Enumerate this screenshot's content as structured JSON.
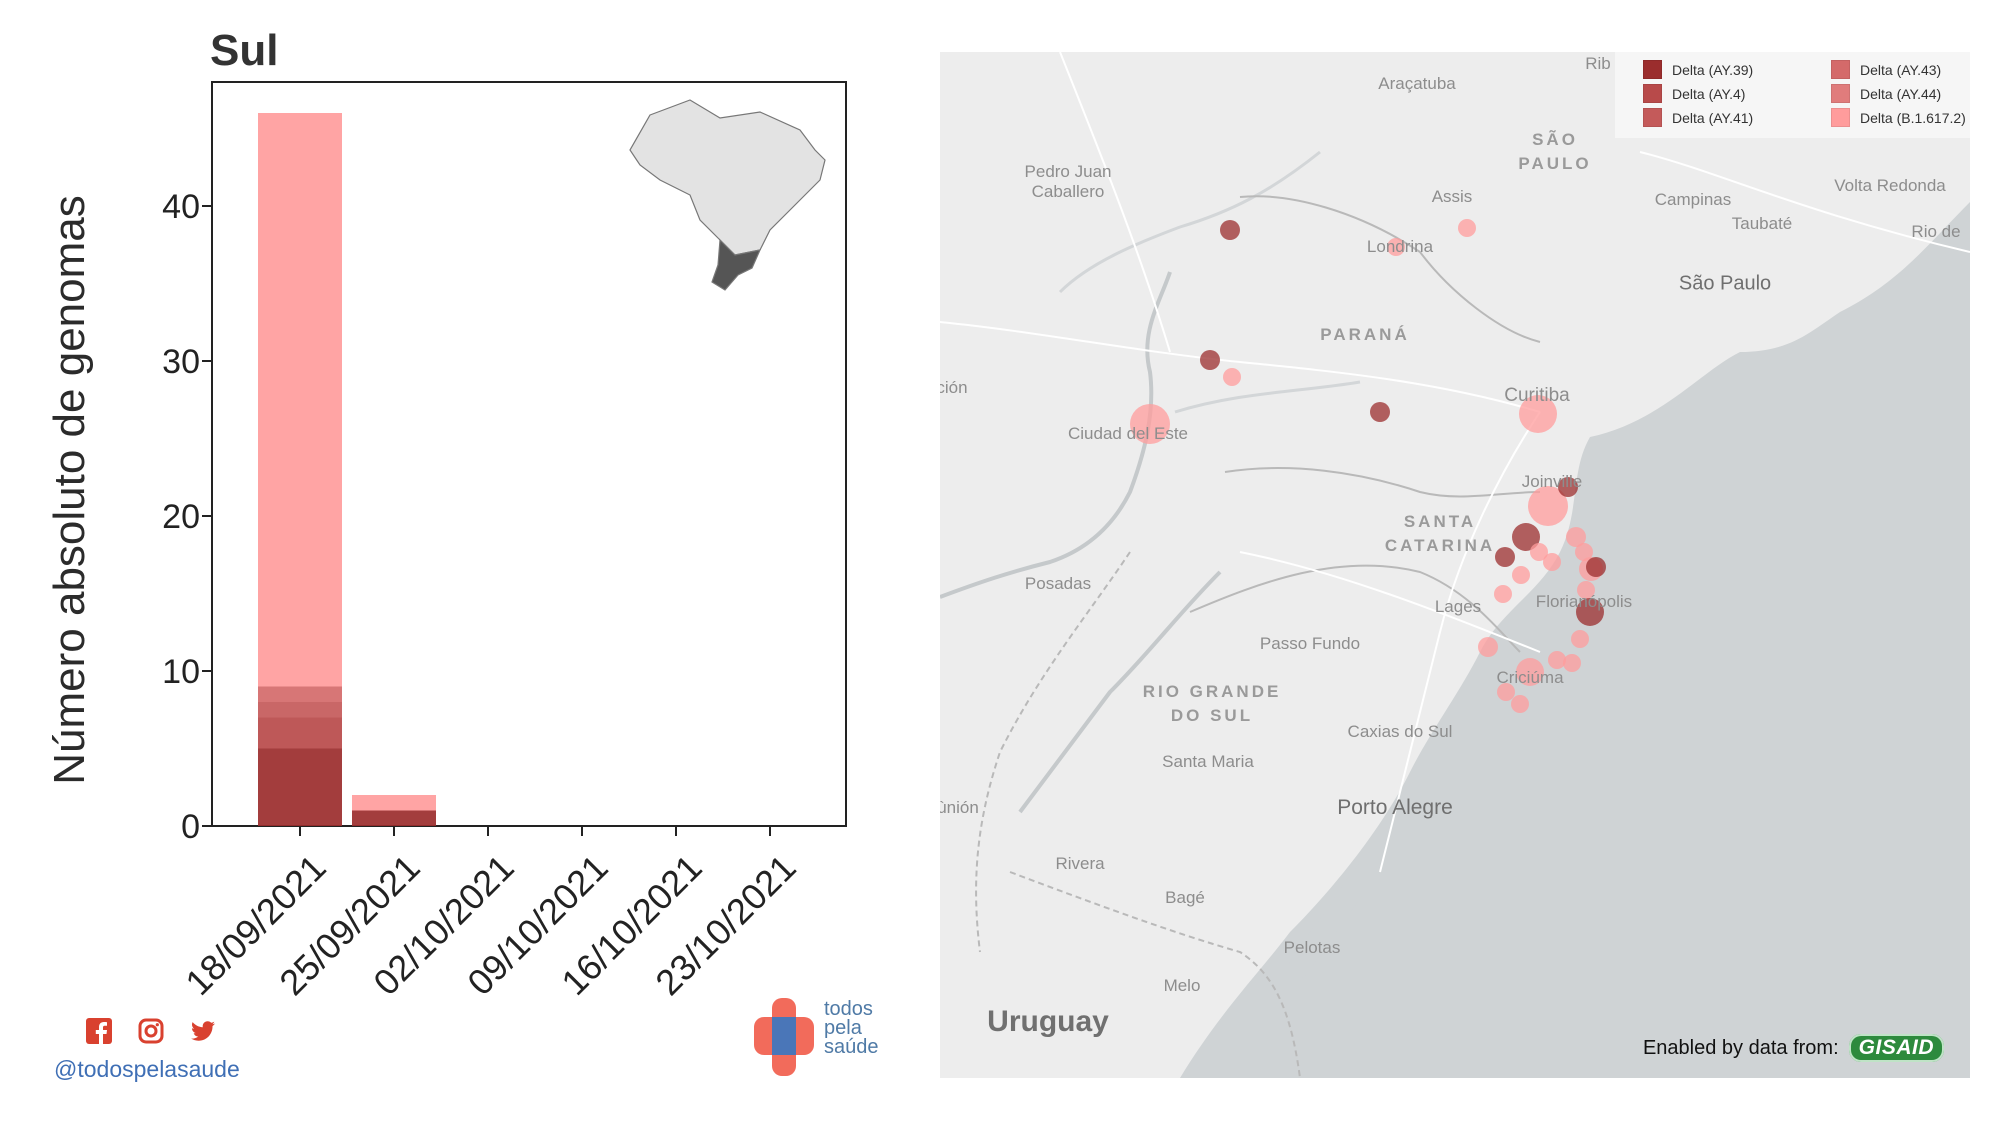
{
  "chart": {
    "title": "Sul",
    "ylabel": "Número absoluto de genomas"
  },
  "chart_data": {
    "type": "bar",
    "title": "Sul",
    "xlabel": "",
    "ylabel": "Número absoluto de genomas",
    "categories": [
      "18/09/2021",
      "25/09/2021",
      "02/10/2021",
      "09/10/2021",
      "16/10/2021",
      "23/10/2021"
    ],
    "stacked": true,
    "yticks": [
      0,
      10,
      20,
      30,
      40
    ],
    "ylim": [
      0,
      48
    ],
    "grid": false,
    "series": [
      {
        "name": "Delta (AY.39)",
        "color": "#9b2d2d",
        "values": [
          5,
          1,
          0,
          0,
          0,
          0
        ]
      },
      {
        "name": "Delta (AY.4)",
        "color": "#b84a4a",
        "values": [
          2,
          0,
          0,
          0,
          0,
          0
        ]
      },
      {
        "name": "Delta (AY.41)",
        "color": "#c45a5a",
        "values": [
          1,
          0,
          0,
          0,
          0,
          0
        ]
      },
      {
        "name": "Delta (AY.43)",
        "color": "#d46a6a",
        "values": [
          1,
          0,
          0,
          0,
          0,
          0
        ]
      },
      {
        "name": "Delta (AY.44)",
        "color": "#e07c7c",
        "values": [
          0,
          0,
          0,
          0,
          0,
          0
        ]
      },
      {
        "name": "Delta (B.1.617.2)",
        "color": "#ff9c9c",
        "values": [
          37,
          1,
          0,
          0,
          0,
          0
        ]
      }
    ]
  },
  "inset_map": {
    "highlight_region": "Sul",
    "base_color": "#e3e3e3",
    "highlight_color": "#555555"
  },
  "social": {
    "icons": [
      "facebook-icon",
      "instagram-icon",
      "twitter-icon"
    ],
    "handle": "@todospelasaude"
  },
  "logo": {
    "line1": "todos",
    "line2": "pela",
    "line3": "saúde",
    "colors": {
      "red": "#f26b5b",
      "blue": "#4a76b8"
    }
  },
  "map": {
    "legend": [
      {
        "label": "Delta (AY.39)",
        "color": "#9b2d2d"
      },
      {
        "label": "Delta (AY.43)",
        "color": "#d46a6a"
      },
      {
        "label": "Delta (AY.4)",
        "color": "#b84a4a"
      },
      {
        "label": "Delta (AY.44)",
        "color": "#e07c7c"
      },
      {
        "label": "Delta (AY.41)",
        "color": "#c45a5a"
      },
      {
        "label": "Delta (B.1.617.2)",
        "color": "#ff9c9c"
      }
    ],
    "labels": {
      "aracatuba": "Araçatuba",
      "ribeirao": "Rib",
      "sao_paulo_state": "SÃO\nPAULO",
      "pedro_juan": "Pedro Juan\nCaballero",
      "assis": "Assis",
      "campinas": "Campinas",
      "volta_redonda": "Volta Redonda",
      "taubate": "Taubaté",
      "rio": "Rio de",
      "londrina": "Londrina",
      "sao_paulo_city": "São Paulo",
      "parana": "PARANÁ",
      "cion": "ción",
      "curitiba": "Curitiba",
      "ciudad_del_este": "Ciudad del Este",
      "joinville": "Joinville",
      "santa_catarina": "SANTA\nCATARINA",
      "posadas": "Posadas",
      "lages": "Lages",
      "florianopolis": "Florianópolis",
      "passo_fundo": "Passo Fundo",
      "rio_grande_do_sul": "RIO GRANDE\nDO SUL",
      "caxias": "Caxias do Sul",
      "santa_maria": "Santa Maria",
      "criciuma": "Criciúma",
      "porto_alegre": "Porto Alegre",
      "union": "ùnión",
      "rivera": "Rivera",
      "bage": "Bagé",
      "pelotas": "Pelotas",
      "melo": "Melo",
      "uruguay": "Uruguay"
    },
    "credit": "Enabled by data from:",
    "credit_badge": "GISAID"
  }
}
